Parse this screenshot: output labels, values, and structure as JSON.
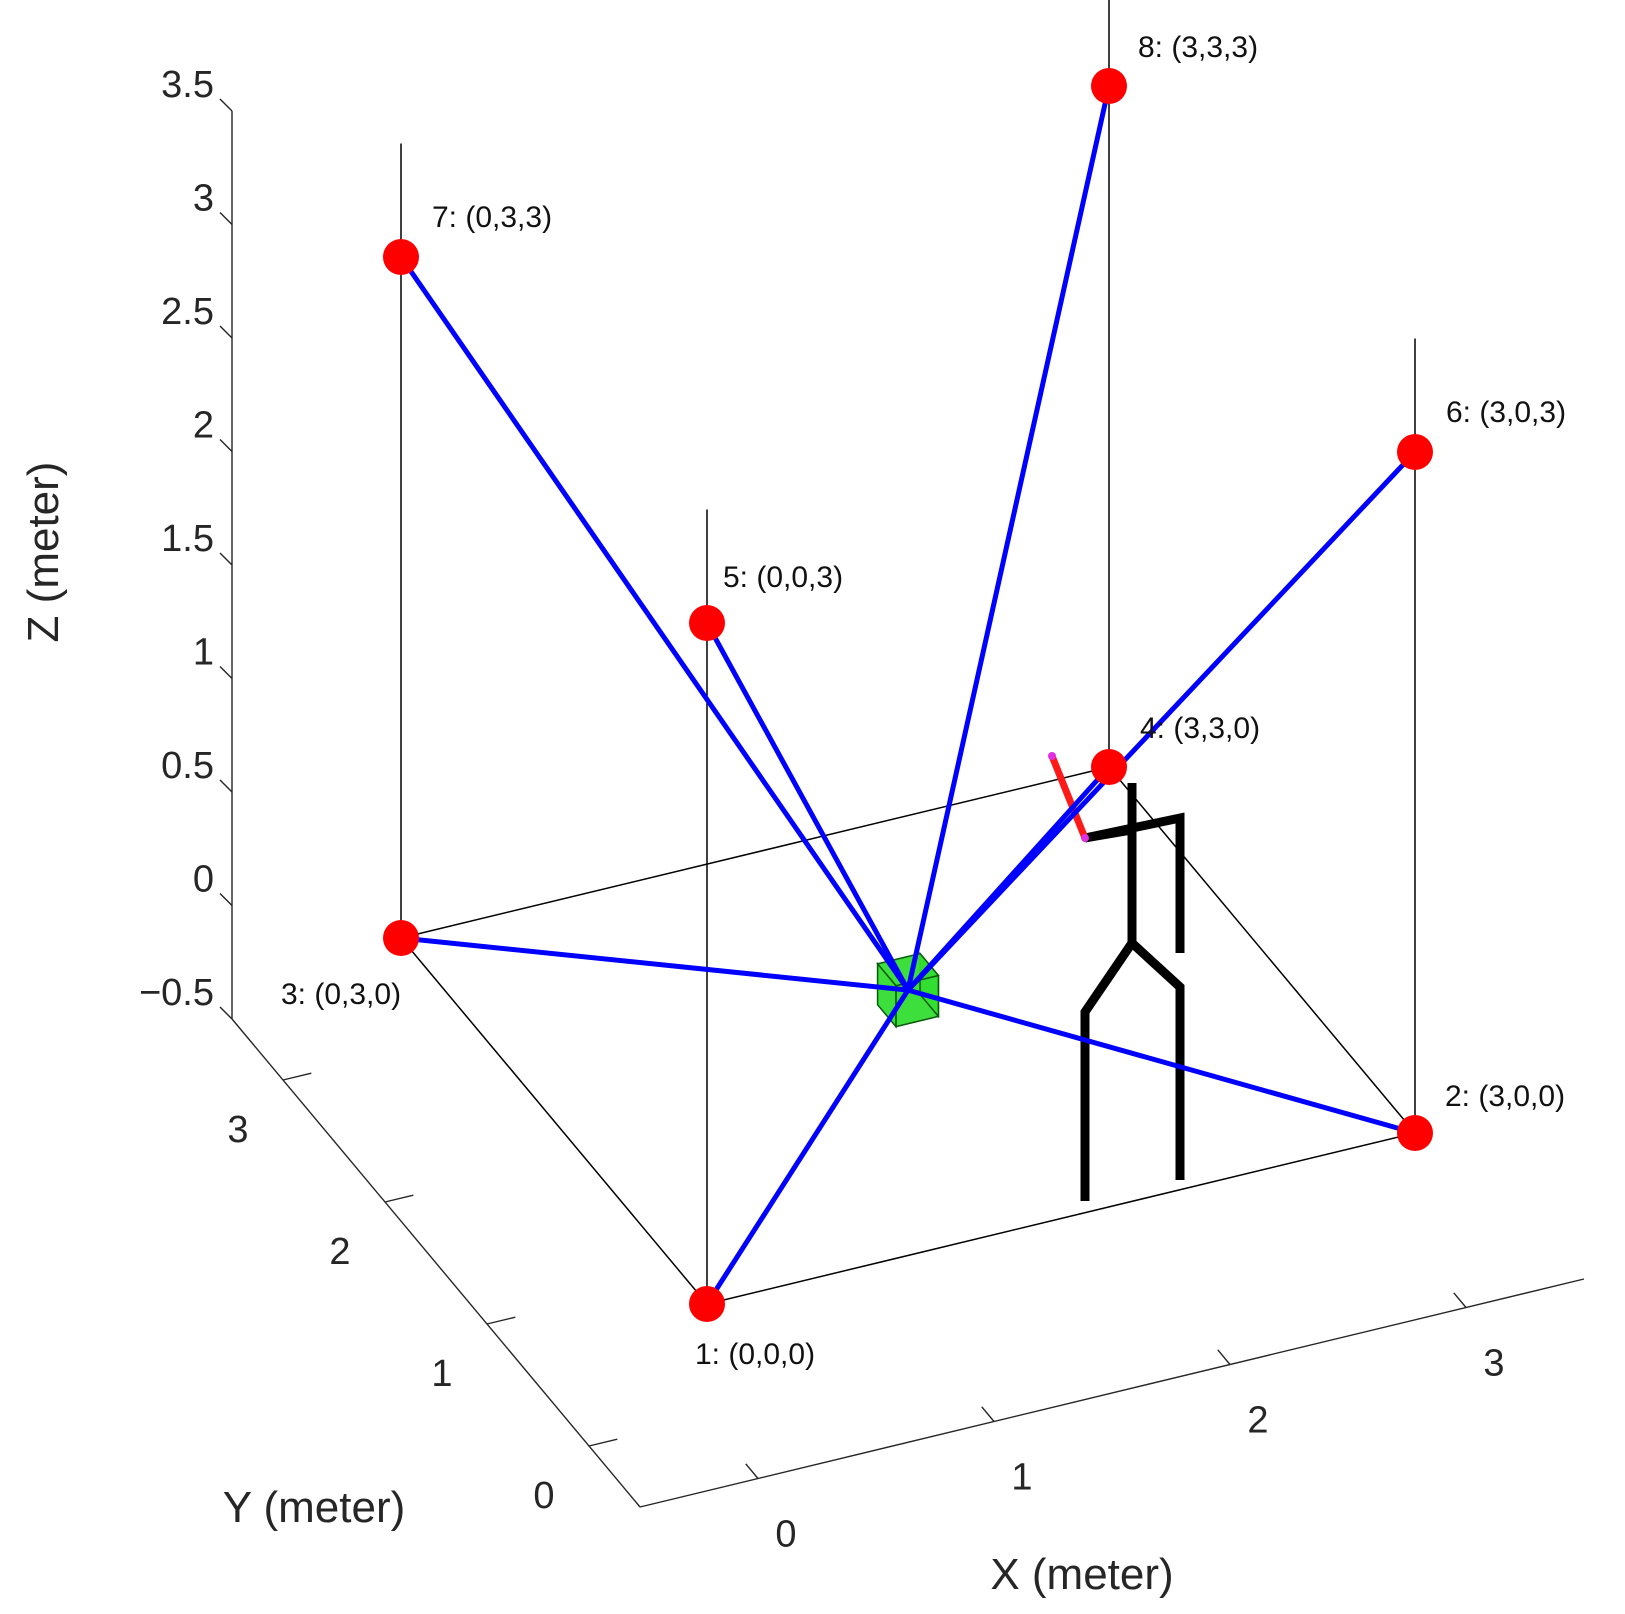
{
  "chart_data": {
    "type": "scatter3d",
    "title": "",
    "xlabel": "X (meter)",
    "ylabel": "Y (meter)",
    "zlabel": "Z (meter)",
    "xticks": [
      "0",
      "1",
      "2",
      "3"
    ],
    "yticks": [
      "0",
      "1",
      "2",
      "3"
    ],
    "zticks": [
      "−0.5",
      "0",
      "0.5",
      "1",
      "1.5",
      "2",
      "2.5",
      "3",
      "3.5"
    ],
    "xlim": [
      -0.5,
      3.5
    ],
    "ylim": [
      -0.5,
      3.5
    ],
    "zlim": [
      -0.5,
      3.5
    ],
    "grid": false,
    "colors": {
      "anchor": "#ff0000",
      "link": "#0000ff",
      "frame": "#000000",
      "target": "#33dd33",
      "person": "#000000",
      "arm": "#ff1a1a",
      "hand": "#e030e0"
    },
    "anchors": [
      {
        "id": 1,
        "label": "1: (0,0,0)",
        "x": 0,
        "y": 0,
        "z": 0
      },
      {
        "id": 2,
        "label": "2: (3,0,0)",
        "x": 3,
        "y": 0,
        "z": 0
      },
      {
        "id": 3,
        "label": "3: (0,3,0)",
        "x": 0,
        "y": 3,
        "z": 0
      },
      {
        "id": 4,
        "label": "4: (3,3,0)",
        "x": 3,
        "y": 3,
        "z": 0
      },
      {
        "id": 5,
        "label": "5: (0,0,3)",
        "x": 0,
        "y": 0,
        "z": 3
      },
      {
        "id": 6,
        "label": "6: (3,0,3)",
        "x": 3,
        "y": 0,
        "z": 3
      },
      {
        "id": 7,
        "label": "7: (0,3,3)",
        "x": 0,
        "y": 3,
        "z": 3
      },
      {
        "id": 8,
        "label": "8: (3,3,3)",
        "x": 3,
        "y": 3,
        "z": 3
      }
    ],
    "target": {
      "x": 1.5,
      "y": 1.5,
      "z": 0.2,
      "shape": "cube"
    },
    "links_from_target_to_anchors": [
      1,
      2,
      3,
      4,
      5,
      6,
      7,
      8
    ],
    "frame_edges": [
      [
        1,
        2
      ],
      [
        2,
        4
      ],
      [
        4,
        3
      ],
      [
        3,
        1
      ],
      [
        1,
        5
      ],
      [
        2,
        6
      ],
      [
        3,
        7
      ],
      [
        4,
        8
      ]
    ],
    "person": {
      "icon": "stick-figure-icon",
      "arm": "red-pointing-arm"
    }
  }
}
